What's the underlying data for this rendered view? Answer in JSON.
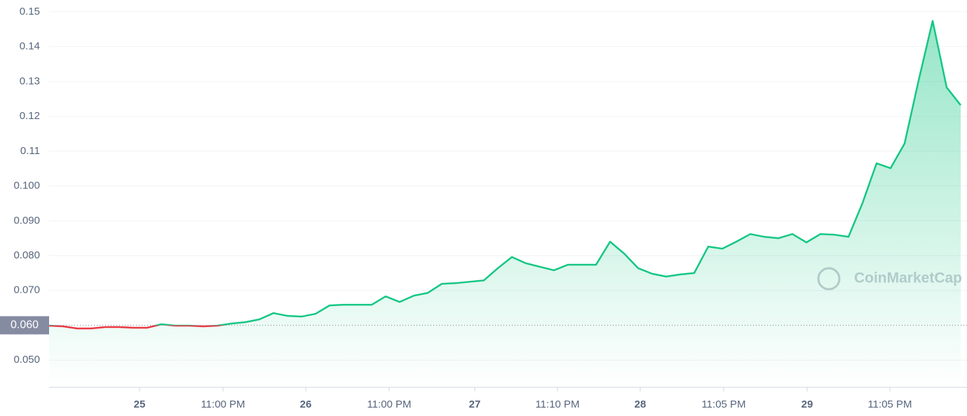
{
  "chart_data": {
    "type": "area-line",
    "watermark": "CoinMarketCap",
    "x": [
      0,
      1,
      2,
      3,
      4,
      5,
      6,
      7,
      8,
      9,
      10,
      11,
      12,
      13,
      14,
      15,
      16,
      17,
      18,
      19,
      20,
      21,
      22,
      23,
      24,
      25,
      26,
      27,
      28,
      29,
      30,
      31,
      32,
      33,
      34,
      35,
      36,
      37,
      38,
      39,
      40,
      41,
      42,
      43,
      44,
      45,
      46,
      47,
      48,
      49,
      50,
      51,
      52,
      53,
      54,
      55,
      56,
      57,
      58,
      59,
      60,
      61,
      62,
      63,
      64,
      65
    ],
    "series": [
      {
        "color": "#16c784",
        "below_color": "#ea3943",
        "values": [
          0.0599,
          0.0597,
          0.0591,
          0.0591,
          0.0595,
          0.0595,
          0.0593,
          0.0593,
          0.0603,
          0.0599,
          0.0599,
          0.0597,
          0.0599,
          0.0605,
          0.0609,
          0.0617,
          0.0635,
          0.0627,
          0.0625,
          0.0633,
          0.0657,
          0.0659,
          0.0659,
          0.0659,
          0.0683,
          0.0667,
          0.0685,
          0.0693,
          0.0719,
          0.0721,
          0.0725,
          0.0729,
          0.0764,
          0.0796,
          0.0778,
          0.0768,
          0.0758,
          0.0774,
          0.0774,
          0.0774,
          0.084,
          0.0806,
          0.0764,
          0.0748,
          0.074,
          0.0746,
          0.075,
          0.0826,
          0.082,
          0.084,
          0.0862,
          0.0854,
          0.085,
          0.0862,
          0.0838,
          0.0862,
          0.086,
          0.0854,
          0.0951,
          0.1065,
          0.1051,
          0.1122,
          0.1303,
          0.1474,
          0.1283,
          0.1232
        ]
      }
    ],
    "reference_line": {
      "value": 0.06,
      "label": "0.060"
    },
    "xlim": [
      0,
      65.45
    ],
    "xticks": [
      {
        "value": 6.45,
        "label": "25"
      },
      {
        "value": 12.4,
        "label": "11:00 PM"
      },
      {
        "value": 18.3,
        "label": "26"
      },
      {
        "value": 24.25,
        "label": "11:00 PM"
      },
      {
        "value": 30.35,
        "label": "27"
      },
      {
        "value": 36.25,
        "label": "11:10 PM"
      },
      {
        "value": 42.15,
        "label": "28"
      },
      {
        "value": 48.1,
        "label": "11:05 PM"
      },
      {
        "value": 54.05,
        "label": "29"
      },
      {
        "value": 59.95,
        "label": "11:05 PM"
      }
    ],
    "ylim": [
      0.0422,
      0.1534
    ],
    "yticks": [
      {
        "value": 0.05,
        "label": "0.050"
      },
      {
        "value": 0.07,
        "label": "0.070"
      },
      {
        "value": 0.08,
        "label": "0.080"
      },
      {
        "value": 0.09,
        "label": "0.090"
      },
      {
        "value": 0.1,
        "label": "0.100"
      },
      0.11,
      0.12,
      0.13,
      0.14,
      0.15
    ],
    "grid": true
  }
}
